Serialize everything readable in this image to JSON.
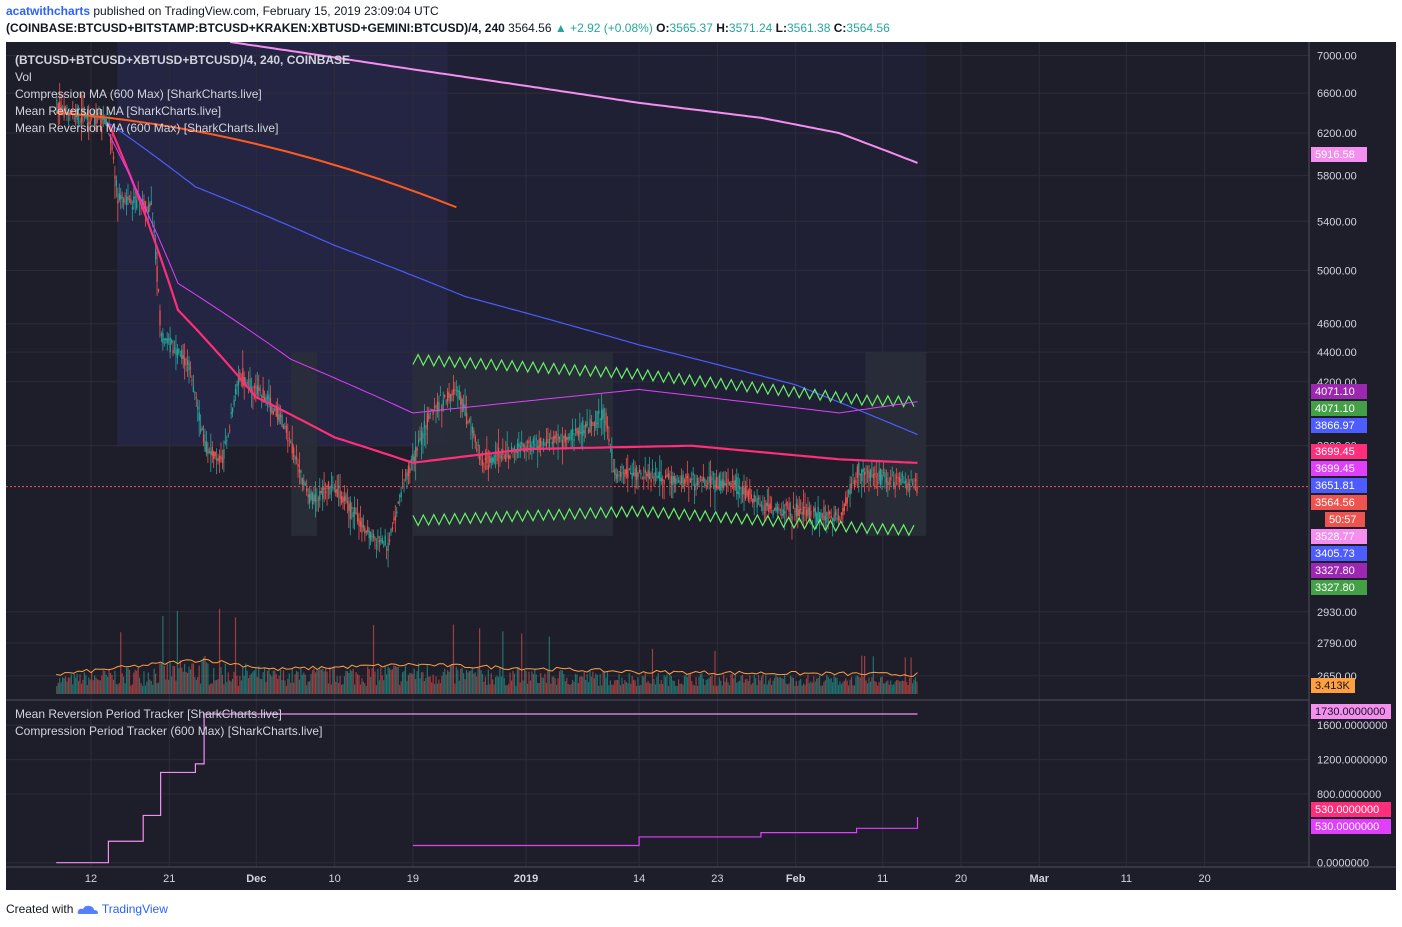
{
  "header": {
    "author": "acatwithcharts",
    "published_text": "published on TradingView.com, February 15, 2019 23:09:04 UTC",
    "symbol": "(COINBASE:BTCUSD+BITSTAMP:BTCUSD+KRAKEN:XBTUSD+GEMINI:BTCUSD)/4, 240",
    "last_price": "3564.56",
    "change": "▲ +2.92 (+0.08%)",
    "open_label": "O:",
    "open": "3565.37",
    "high_label": "H:",
    "high": "3571.24",
    "low_label": "L:",
    "low": "3561.38",
    "close_label": "C:",
    "close": "3564.56"
  },
  "legend": {
    "symbol_line": "(BTCUSD+BTCUSD+XBTUSD+BTCUSD)/4, 240, COINBASE",
    "vol": "Vol",
    "compression_ma": "Compression MA (600 Max) [SharkCharts.live]",
    "mean_reversion_ma": "Mean Reversion MA [SharkCharts.live]",
    "mean_reversion_ma_600": "Mean Reversion MA (600 Max) [SharkCharts.live]",
    "period_tracker": "Mean Reversion Period Tracker [SharkCharts.live]",
    "compression_tracker": "Compression Period Tracker (600 Max) [SharkCharts.live]"
  },
  "footer": {
    "created_with": "Created with",
    "brand": "TradingView"
  },
  "colors": {
    "background": "#1e1e2b",
    "grid": "#2c2c3a",
    "axis_text": "#d1d4dc",
    "up": "#26a69a",
    "down": "#ef5350",
    "pink_ma": "#ff2e7a",
    "magenta": "#e040fb",
    "violet": "#f48fef",
    "blue": "#4c5cff",
    "green": "#69f06a",
    "orange": "#ff5a1f",
    "vol_ma": "#ff9f40",
    "shade": "#23233d"
  },
  "chart_data": [
    {
      "type": "candlestick",
      "title": "(BTCUSD+BTCUSD+XBTUSD+BTCUSD)/4, 240, COINBASE",
      "y_scale": "log",
      "ylim": [
        2560,
        7150
      ],
      "x_ticks": [
        "12",
        "21",
        "Dec",
        "10",
        "19",
        "2019",
        "14",
        "23",
        "Feb",
        "11",
        "20",
        "Mar",
        "11",
        "20"
      ],
      "y_ticks": [
        "7000.00",
        "6600.00",
        "6200.00",
        "5800.00",
        "5400.00",
        "5000.00",
        "4600.00",
        "4400.00",
        "4200.00",
        "3800.00",
        "2930.00",
        "2790.00",
        "2650.00"
      ],
      "price_path": [
        {
          "x": "Nov 08",
          "y": 6450
        },
        {
          "x": "Nov 14",
          "y": 6300
        },
        {
          "x": "Nov 15",
          "y": 5600
        },
        {
          "x": "Nov 19",
          "y": 5500
        },
        {
          "x": "Nov 20",
          "y": 4500
        },
        {
          "x": "Nov 23",
          "y": 4350
        },
        {
          "x": "Nov 25",
          "y": 3800
        },
        {
          "x": "Nov 27",
          "y": 3700
        },
        {
          "x": "Nov 29",
          "y": 4250
        },
        {
          "x": "Dec 01",
          "y": 4150
        },
        {
          "x": "Dec 04",
          "y": 3950
        },
        {
          "x": "Dec 07",
          "y": 3500
        },
        {
          "x": "Dec 10",
          "y": 3550
        },
        {
          "x": "Dec 14",
          "y": 3300
        },
        {
          "x": "Dec 16",
          "y": 3250
        },
        {
          "x": "Dec 18",
          "y": 3600
        },
        {
          "x": "Dec 21",
          "y": 4000
        },
        {
          "x": "Dec 24",
          "y": 4150
        },
        {
          "x": "Dec 27",
          "y": 3700
        },
        {
          "x": "Jan 01",
          "y": 3800
        },
        {
          "x": "Jan 06",
          "y": 3850
        },
        {
          "x": "Jan 10",
          "y": 4000
        },
        {
          "x": "Jan 11",
          "y": 3650
        },
        {
          "x": "Jan 18",
          "y": 3600
        },
        {
          "x": "Jan 25",
          "y": 3580
        },
        {
          "x": "Jan 28",
          "y": 3450
        },
        {
          "x": "Feb 06",
          "y": 3400
        },
        {
          "x": "Feb 08",
          "y": 3650
        },
        {
          "x": "Feb 15",
          "y": 3564.56
        }
      ],
      "series": [
        {
          "name": "Compression MA (600 Max) [SharkCharts.live]",
          "last": "5916.58",
          "points": [
            {
              "x": "Nov 28",
              "y": 7150
            },
            {
              "x": "Dec 19",
              "y": 6850
            },
            {
              "x": "Jan 14",
              "y": 6500
            },
            {
              "x": "Jan 28",
              "y": 6350
            },
            {
              "x": "Feb 06",
              "y": 6200
            },
            {
              "x": "Feb 15",
              "y": 5916.58
            }
          ]
        },
        {
          "name": "Mean Reversion MA [SharkCharts.live]",
          "last": "3699.45",
          "points": [
            {
              "x": "Nov 14",
              "y": 6300
            },
            {
              "x": "Nov 22",
              "y": 4700
            },
            {
              "x": "Dec 01",
              "y": 4100
            },
            {
              "x": "Dec 10",
              "y": 3850
            },
            {
              "x": "Dec 19",
              "y": 3700
            },
            {
              "x": "Jan 01",
              "y": 3780
            },
            {
              "x": "Jan 20",
              "y": 3800
            },
            {
              "x": "Feb 06",
              "y": 3720
            },
            {
              "x": "Feb 15",
              "y": 3699.45
            }
          ]
        },
        {
          "name": "Mean Reversion MA (600 Max) [SharkCharts.live]",
          "last": "3866.97",
          "points": [
            {
              "x": "Nov 14",
              "y": 6300
            },
            {
              "x": "Nov 24",
              "y": 5700
            },
            {
              "x": "Dec 10",
              "y": 5200
            },
            {
              "x": "Dec 25",
              "y": 4800
            },
            {
              "x": "Jan 14",
              "y": 4450
            },
            {
              "x": "Feb 01",
              "y": 4180
            },
            {
              "x": "Feb 15",
              "y": 3866.97
            }
          ]
        },
        {
          "name": "upper band",
          "last": "4071.10",
          "points": [
            {
              "x": "Dec 19",
              "y": 4350
            },
            {
              "x": "Jan 14",
              "y": 4250
            },
            {
              "x": "Feb 09",
              "y": 4080
            },
            {
              "x": "Feb 15",
              "y": 4071.1
            }
          ]
        },
        {
          "name": "lower band",
          "last": "3327.80",
          "points": [
            {
              "x": "Dec 19",
              "y": 3380
            },
            {
              "x": "Jan 14",
              "y": 3430
            },
            {
              "x": "Feb 09",
              "y": 3340
            },
            {
              "x": "Feb 15",
              "y": 3327.8
            }
          ]
        }
      ],
      "price_labels": [
        "5916.58",
        "4071.10",
        "4071.10",
        "3866.97",
        "3699.45",
        "3699.45",
        "3651.81",
        "3564.56",
        "50:57",
        "3528.77",
        "3405.73",
        "3327.80",
        "3327.80"
      ]
    },
    {
      "type": "bar",
      "title": "Vol",
      "last_label": "3.413K",
      "ma_levels": [
        {
          "x": "Nov 08",
          "y": 0.3
        },
        {
          "x": "Nov 19",
          "y": 0.7
        },
        {
          "x": "Nov 25",
          "y": 0.9
        },
        {
          "x": "Dec 03",
          "y": 0.5
        },
        {
          "x": "Dec 19",
          "y": 0.7
        },
        {
          "x": "Jan 14",
          "y": 0.4
        },
        {
          "x": "Feb 15",
          "y": 0.3
        }
      ]
    },
    {
      "type": "line",
      "title": "Mean Reversion Period Tracker [SharkCharts.live]",
      "y_ticks": [
        "1600.0000000",
        "1200.0000000",
        "800.0000000",
        "0.0000000"
      ],
      "ylim": [
        -50,
        1800
      ],
      "series": [
        {
          "name": "Mean Reversion Period Tracker [SharkCharts.live]",
          "last": "1730.0000000",
          "points": [
            {
              "x": "Nov 08",
              "y": 0
            },
            {
              "x": "Nov 14",
              "y": 250
            },
            {
              "x": "Nov 18",
              "y": 550
            },
            {
              "x": "Nov 20",
              "y": 1050
            },
            {
              "x": "Nov 24",
              "y": 1150
            },
            {
              "x": "Nov 25",
              "y": 1730
            },
            {
              "x": "Feb 15",
              "y": 1730
            }
          ]
        },
        {
          "name": "Compression Period Tracker (600 Max) [SharkCharts.live]",
          "last": "530.0000000",
          "points": [
            {
              "x": "Dec 19",
              "y": 200
            },
            {
              "x": "Jan 14",
              "y": 300
            },
            {
              "x": "Jan 28",
              "y": 350
            },
            {
              "x": "Feb 08",
              "y": 400
            },
            {
              "x": "Feb 15",
              "y": 530
            }
          ]
        }
      ],
      "price_labels": [
        "1730.0000000",
        "530.0000000",
        "530.0000000"
      ]
    }
  ]
}
